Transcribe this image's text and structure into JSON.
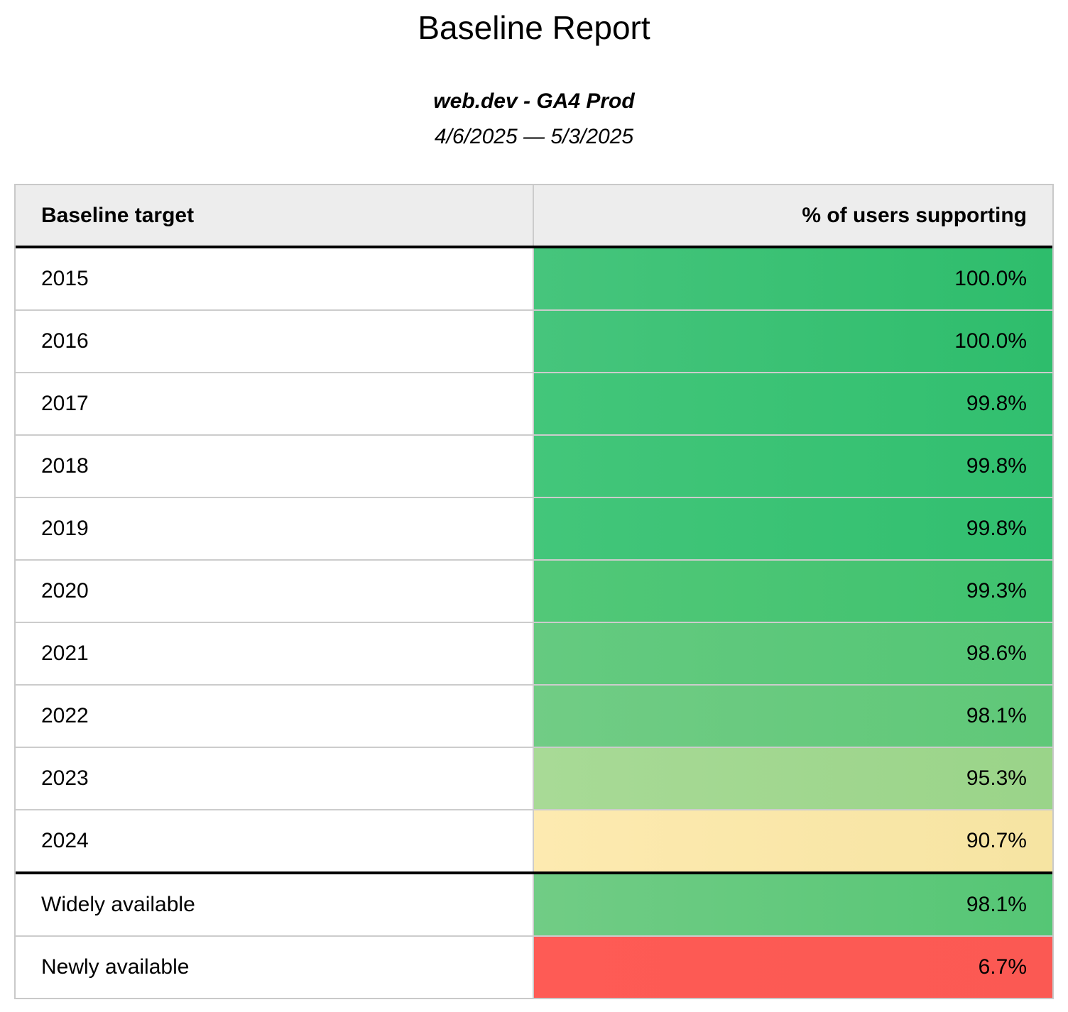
{
  "report": {
    "title": "Baseline Report",
    "subtitle": "web.dev - GA4 Prod",
    "date_range": "4/6/2025 — 5/3/2025"
  },
  "table": {
    "columns": [
      "Baseline target",
      "% of users supporting"
    ],
    "rows": [
      {
        "label": "2015",
        "value": "100.0%",
        "color_left": "#46c57c",
        "color_right": "#2ebd6c"
      },
      {
        "label": "2016",
        "value": "100.0%",
        "color_left": "#46c57c",
        "color_right": "#2ebd6c"
      },
      {
        "label": "2017",
        "value": "99.8%",
        "color_left": "#43c67a",
        "color_right": "#31bf6f"
      },
      {
        "label": "2018",
        "value": "99.8%",
        "color_left": "#43c67a",
        "color_right": "#31bf6f"
      },
      {
        "label": "2019",
        "value": "99.8%",
        "color_left": "#43c67a",
        "color_right": "#31bf6f"
      },
      {
        "label": "2020",
        "value": "99.3%",
        "color_left": "#52c878",
        "color_right": "#3fc26f"
      },
      {
        "label": "2021",
        "value": "98.6%",
        "color_left": "#65ca80",
        "color_right": "#53c675"
      },
      {
        "label": "2022",
        "value": "98.1%",
        "color_left": "#71cc85",
        "color_right": "#5fc878"
      },
      {
        "label": "2023",
        "value": "95.3%",
        "color_left": "#a8da96",
        "color_right": "#9ad489"
      },
      {
        "label": "2024",
        "value": "90.7%",
        "color_left": "#fdeab0",
        "color_right": "#f6e4a2"
      },
      {
        "label": "Widely available",
        "value": "98.1%",
        "color_left": "#71cc85",
        "color_right": "#55c675"
      },
      {
        "label": "Newly available",
        "value": "6.7%",
        "color_left": "#fe5b55",
        "color_right": "#fb5953"
      }
    ]
  },
  "chart_data": {
    "type": "table",
    "title": "Baseline Report",
    "subtitle": "web.dev - GA4 Prod",
    "date_range": "4/6/2025 — 5/3/2025",
    "columns": [
      "Baseline target",
      "% of users supporting"
    ],
    "categories": [
      "2015",
      "2016",
      "2017",
      "2018",
      "2019",
      "2020",
      "2021",
      "2022",
      "2023",
      "2024",
      "Widely available",
      "Newly available"
    ],
    "values": [
      100.0,
      100.0,
      99.8,
      99.8,
      99.8,
      99.3,
      98.6,
      98.1,
      95.3,
      90.7,
      98.1,
      6.7
    ],
    "value_unit": "%",
    "layout": "two-column heatmap table, value cells colored green (high) to yellow (~90%) to red (low), value column right-aligned",
    "group_separator_after_index": 9
  }
}
